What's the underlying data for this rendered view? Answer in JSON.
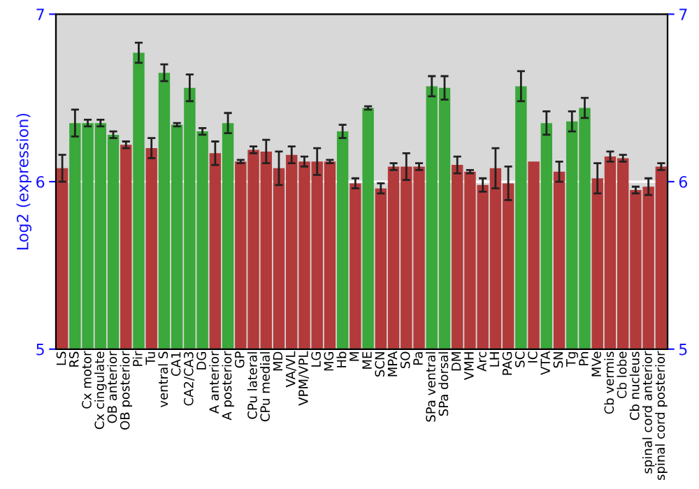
{
  "chart_data": {
    "type": "bar",
    "ylabel": "Log2 (expression)",
    "categories": [
      "LS",
      "RS",
      "Cx motor",
      "Cx cingulate",
      "OB anterior",
      "OB posterior",
      "Pir",
      "Tu",
      "ventral S",
      "CA1",
      "CA2/CA3",
      "DG",
      "A anterior",
      "A posterior",
      "GP",
      "CPu lateral",
      "CPu medial",
      "MD",
      "VA/VL",
      "VPM/VPL",
      "LG",
      "MG",
      "Hb",
      "M",
      "ME",
      "SCN",
      "MPA",
      "SO",
      "Pa",
      "SPa ventral",
      "SPa dorsal",
      "DM",
      "VMH",
      "Arc",
      "LH",
      "PAG",
      "SC",
      "IC",
      "VTA",
      "SN",
      "Tg",
      "Pn",
      "MVe",
      "Cb vermis",
      "Cb lobe",
      "Cb nucleus",
      "spinal cord anterior",
      "spinal cord posterior"
    ],
    "values": [
      6.08,
      6.35,
      6.35,
      6.35,
      6.28,
      6.22,
      6.77,
      6.2,
      6.65,
      6.34,
      6.56,
      6.3,
      6.17,
      6.35,
      6.12,
      6.19,
      6.18,
      6.08,
      6.16,
      6.12,
      6.12,
      6.12,
      6.3,
      5.99,
      6.44,
      5.96,
      6.09,
      6.09,
      6.09,
      6.57,
      6.56,
      6.1,
      6.06,
      5.98,
      6.08,
      5.99,
      6.57,
      6.12,
      6.35,
      6.06,
      6.36,
      6.44,
      6.02,
      6.15,
      6.14,
      5.95,
      5.97,
      6.09
    ],
    "errors": [
      0.08,
      0.08,
      0.02,
      0.02,
      0.02,
      0.02,
      0.06,
      0.06,
      0.05,
      0.01,
      0.08,
      0.02,
      0.07,
      0.06,
      0.01,
      0.02,
      0.07,
      0.1,
      0.05,
      0.03,
      0.08,
      0.01,
      0.04,
      0.03,
      0.01,
      0.03,
      0.02,
      0.08,
      0.02,
      0.06,
      0.07,
      0.05,
      0.01,
      0.04,
      0.12,
      0.1,
      0.09,
      null,
      0.07,
      0.06,
      0.06,
      0.06,
      0.09,
      0.03,
      0.02,
      0.02,
      0.05,
      0.02
    ],
    "colors": [
      "#b33a3a",
      "#3aa83a",
      "#3aa83a",
      "#3aa83a",
      "#3aa83a",
      "#b33a3a",
      "#3aa83a",
      "#b33a3a",
      "#3aa83a",
      "#3aa83a",
      "#3aa83a",
      "#3aa83a",
      "#b33a3a",
      "#3aa83a",
      "#b33a3a",
      "#b33a3a",
      "#b33a3a",
      "#b33a3a",
      "#b33a3a",
      "#b33a3a",
      "#b33a3a",
      "#b33a3a",
      "#3aa83a",
      "#b33a3a",
      "#3aa83a",
      "#b33a3a",
      "#b33a3a",
      "#b33a3a",
      "#b33a3a",
      "#3aa83a",
      "#3aa83a",
      "#b33a3a",
      "#b33a3a",
      "#b33a3a",
      "#b33a3a",
      "#b33a3a",
      "#3aa83a",
      "#b33a3a",
      "#3aa83a",
      "#b33a3a",
      "#3aa83a",
      "#3aa83a",
      "#b33a3a",
      "#b33a3a",
      "#b33a3a",
      "#b33a3a",
      "#b33a3a",
      "#b33a3a"
    ],
    "ylim": [
      5,
      7
    ],
    "yticks": [
      5,
      6,
      7
    ],
    "y2lim": [
      5,
      7
    ],
    "y2ticks": [
      5,
      6,
      7
    ],
    "grid": "y"
  }
}
